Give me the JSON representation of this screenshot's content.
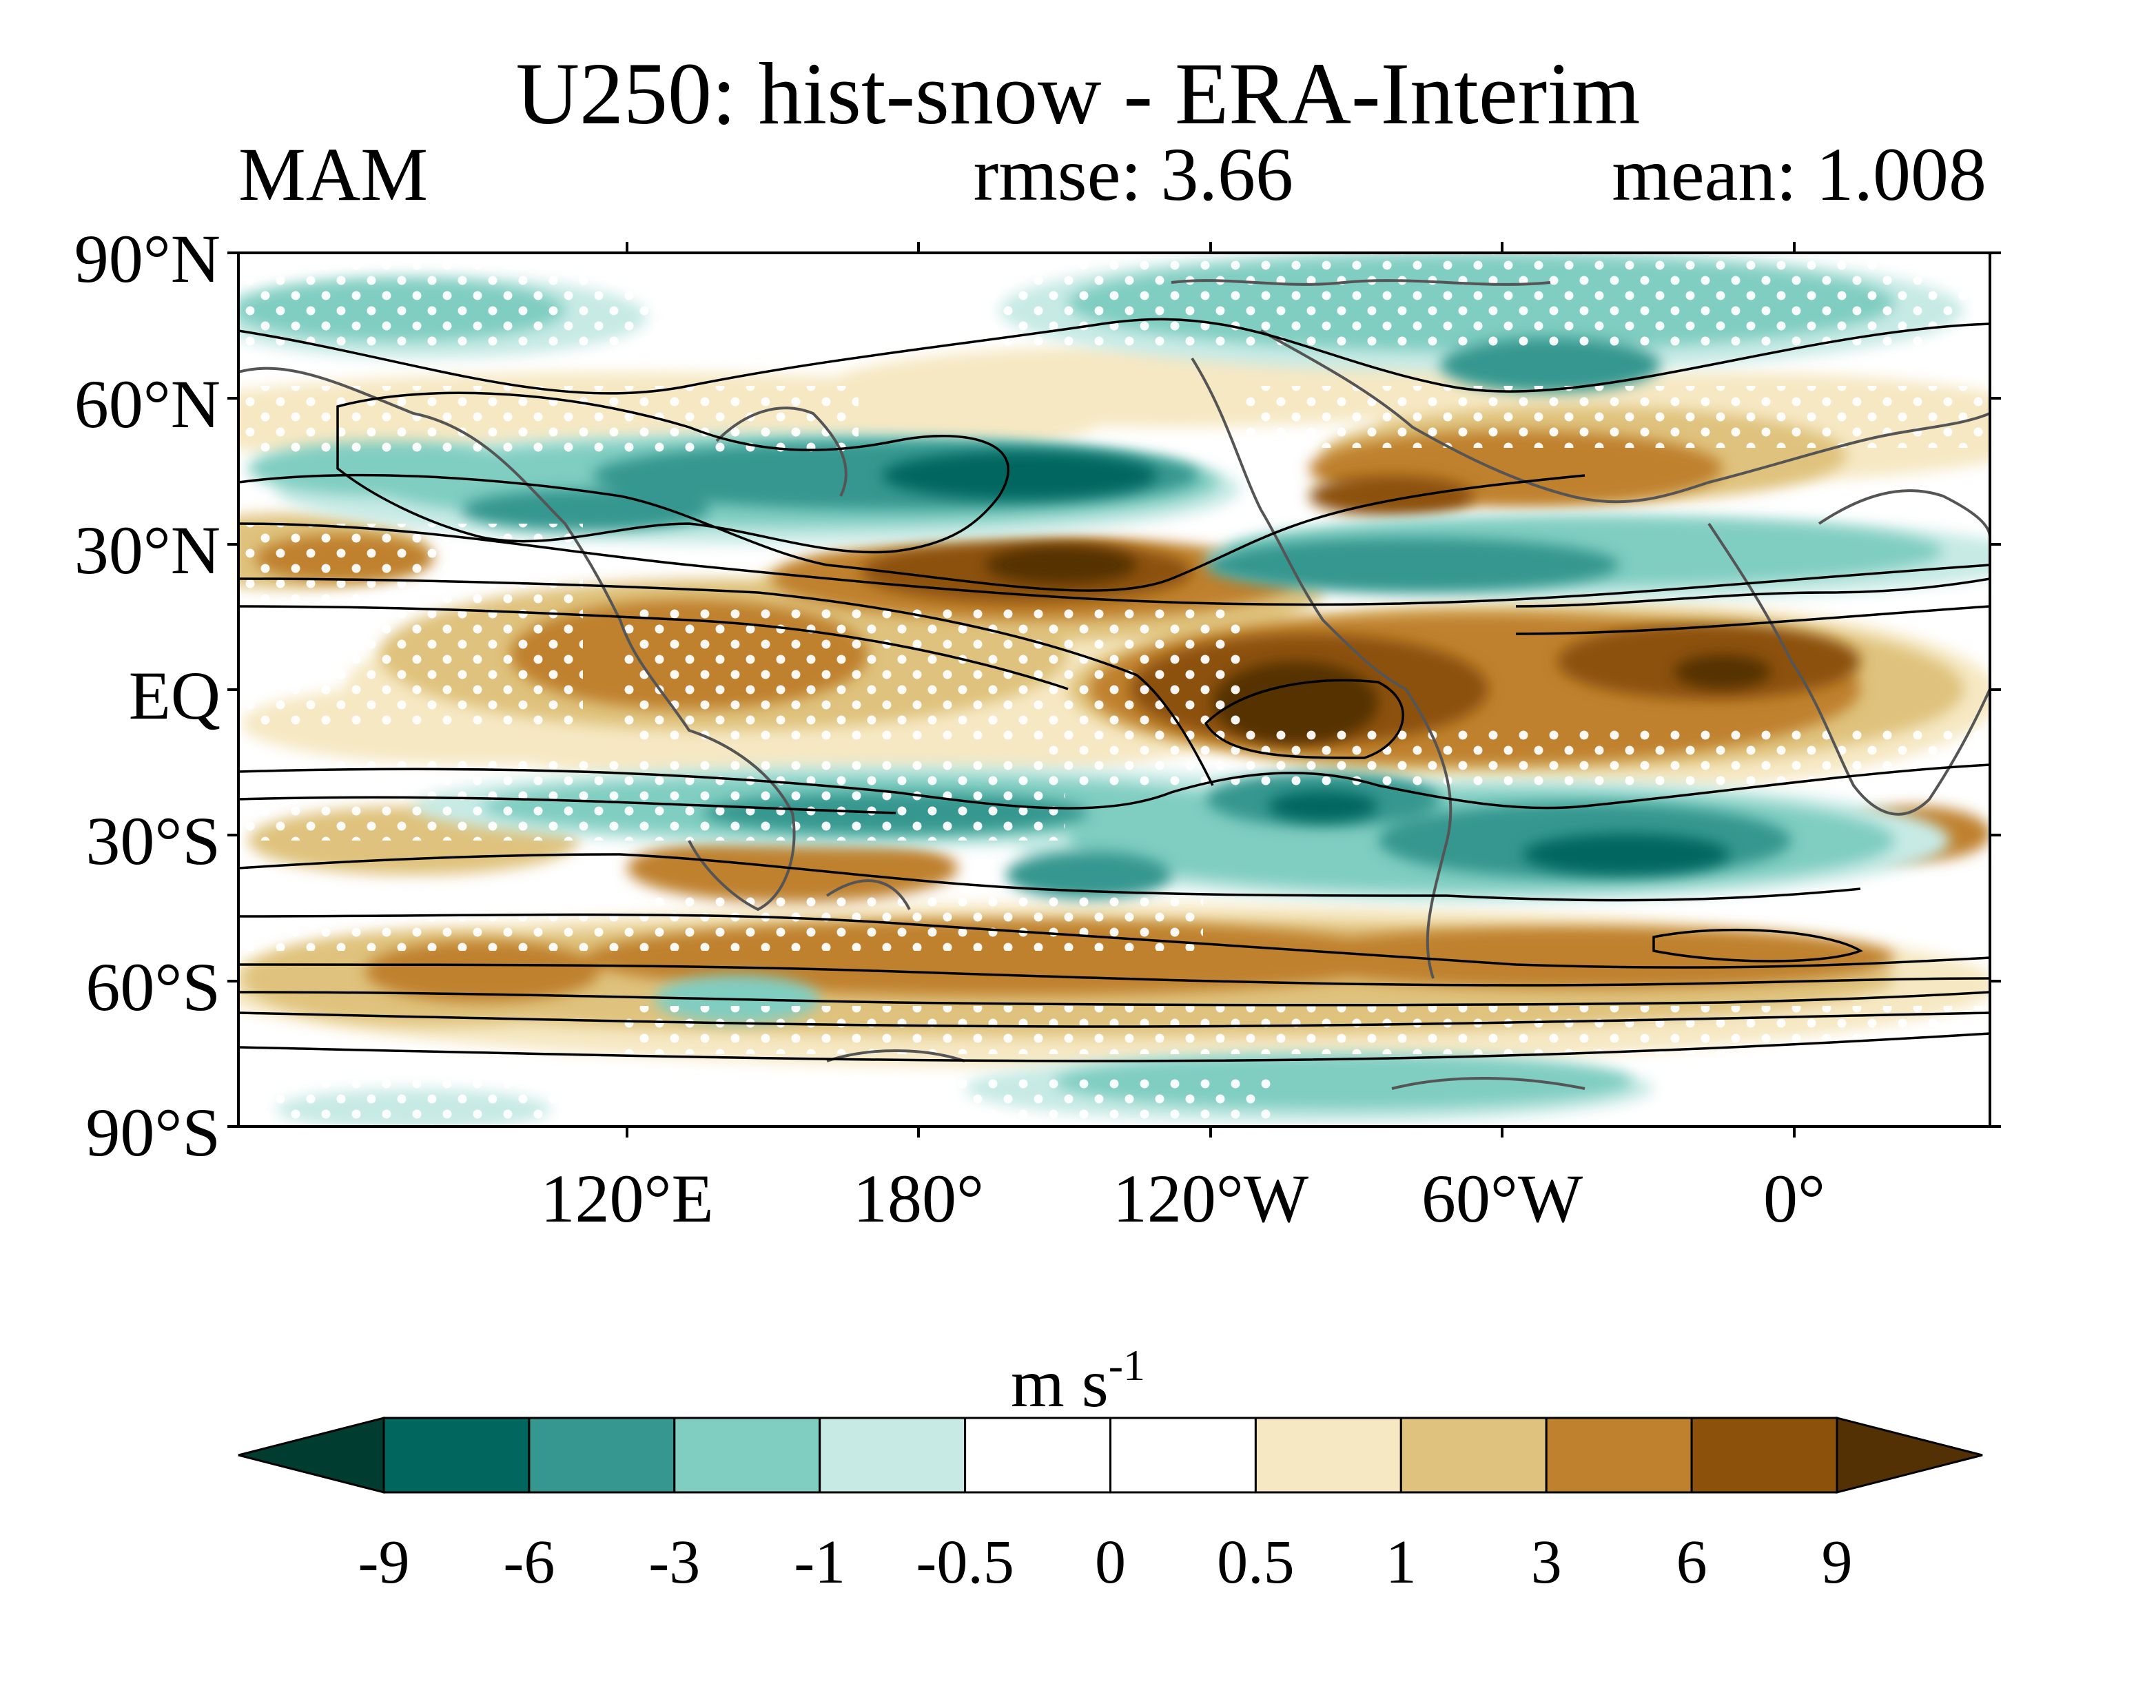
{
  "header": {
    "title": "U250: hist-snow - ERA-Interim",
    "season": "MAM",
    "rmse": "rmse: 3.66",
    "mean": "mean: 1.008"
  },
  "map": {
    "lat_labels": [
      "90°N",
      "60°N",
      "30°N",
      "EQ",
      "30°S",
      "60°S",
      "90°S"
    ],
    "lon_labels": [
      "120°E",
      "180°",
      "120°W",
      "60°W",
      "0°"
    ],
    "colors": {
      "neg_extend": "#003c30",
      "neg9": "#01665e",
      "neg6": "#35978f",
      "neg3": "#80cdc1",
      "neg1": "#c7eae5",
      "neutral": "#ffffff",
      "pos0_5": "#f6e8c3",
      "pos1": "#dfc27d",
      "pos3": "#bf812d",
      "pos6": "#8c510a",
      "pos_extend": "#543005",
      "coast": "#555555",
      "contour": "#000000"
    }
  },
  "colorbar": {
    "units_main": "m s",
    "units_exp": "-1",
    "tick_labels": [
      "-9",
      "-6",
      "-3",
      "-1",
      "-0.5",
      "0",
      "0.5",
      "1",
      "3",
      "6",
      "9"
    ],
    "bin_colors": [
      "#01665e",
      "#35978f",
      "#80cdc1",
      "#c7eae5",
      "#ffffff",
      "#ffffff",
      "#f6e8c3",
      "#dfc27d",
      "#bf812d",
      "#8c510a"
    ],
    "extend_low_color": "#003c30",
    "extend_high_color": "#543005"
  }
}
